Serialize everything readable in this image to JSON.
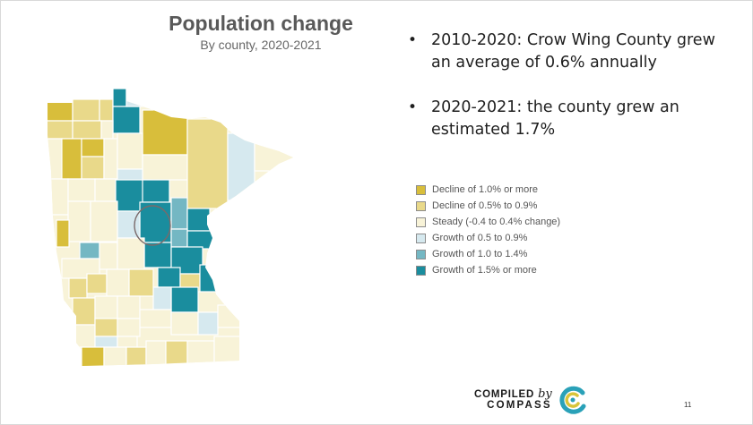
{
  "title": "Population change",
  "subtitle": "By county, 2020-2021",
  "bullets": [
    "2010-2020: Crow Wing County grew an average of 0.6% annually",
    "2020-2021: the county grew an estimated 1.7%"
  ],
  "legend": [
    {
      "label": "Decline of 1.0% or more",
      "color": "#d8be3b"
    },
    {
      "label": "Decline of 0.5% to 0.9%",
      "color": "#e9d98a"
    },
    {
      "label": "Steady (-0.4 to 0.4% change)",
      "color": "#f8f3d8"
    },
    {
      "label": "Growth of 0.5 to 0.9%",
      "color": "#d6e9ef"
    },
    {
      "label": "Growth of 1.0 to 1.4%",
      "color": "#74b7c3"
    },
    {
      "label": "Growth of 1.5% or more",
      "color": "#1a8d9e"
    }
  ],
  "map": {
    "highlighted_county": "Crow Wing County",
    "highlight_outline_color": "#7a6a6a"
  },
  "logo": {
    "line1_word": "COMPILED",
    "line1_by": "by",
    "line2": "COMPASS",
    "icon": "compass-logo-icon",
    "colors": {
      "blue": "#2aa1b8",
      "yellow": "#d8c43a"
    }
  },
  "page_number": "11"
}
